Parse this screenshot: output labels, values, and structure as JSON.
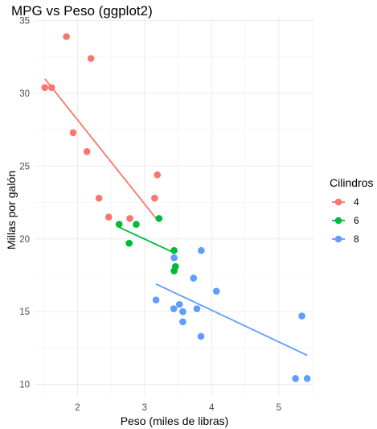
{
  "chart_data": {
    "type": "scatter",
    "title": "MPG vs Peso (ggplot2)",
    "xlabel": "Peso (miles de libras)",
    "ylabel": "Millas por galón",
    "xlim": [
      1.36,
      5.53
    ],
    "ylim": [
      9.2,
      35.2
    ],
    "x_ticks": [
      2,
      3,
      4,
      5
    ],
    "y_ticks": [
      10,
      15,
      20,
      25,
      30,
      35
    ],
    "grid": true,
    "legend": {
      "title": "Cilindros",
      "placement": "right"
    },
    "series": [
      {
        "name": "4",
        "color": "#f8766d",
        "points": [
          [
            1.513,
            30.4
          ],
          [
            1.615,
            30.4
          ],
          [
            1.835,
            33.9
          ],
          [
            1.935,
            27.3
          ],
          [
            2.14,
            26.0
          ],
          [
            2.2,
            32.4
          ],
          [
            2.32,
            22.8
          ],
          [
            2.465,
            21.5
          ],
          [
            2.78,
            21.4
          ],
          [
            3.15,
            22.8
          ],
          [
            3.19,
            24.4
          ]
        ],
        "trend": {
          "x": [
            1.513,
            3.19
          ],
          "y": [
            31.0,
            21.3
          ]
        }
      },
      {
        "name": "6",
        "color": "#00ba38",
        "points": [
          [
            2.62,
            21.0
          ],
          [
            2.77,
            19.7
          ],
          [
            2.875,
            21.0
          ],
          [
            3.215,
            21.4
          ],
          [
            3.44,
            19.2
          ],
          [
            3.46,
            18.1
          ],
          [
            3.44,
            17.8
          ]
        ],
        "trend": {
          "x": [
            2.62,
            3.46
          ],
          "y": [
            20.8,
            19.0
          ]
        }
      },
      {
        "name": "8",
        "color": "#619cff",
        "points": [
          [
            3.17,
            15.8
          ],
          [
            3.435,
            15.2
          ],
          [
            3.44,
            18.7
          ],
          [
            3.52,
            15.5
          ],
          [
            3.57,
            15.0
          ],
          [
            3.57,
            14.3
          ],
          [
            3.73,
            17.3
          ],
          [
            3.78,
            15.2
          ],
          [
            3.84,
            13.3
          ],
          [
            3.845,
            19.2
          ],
          [
            4.07,
            16.4
          ],
          [
            5.25,
            10.4
          ],
          [
            5.345,
            14.7
          ],
          [
            5.424,
            10.4
          ]
        ],
        "trend": {
          "x": [
            3.17,
            5.424
          ],
          "y": [
            16.9,
            12.0
          ]
        }
      }
    ]
  }
}
